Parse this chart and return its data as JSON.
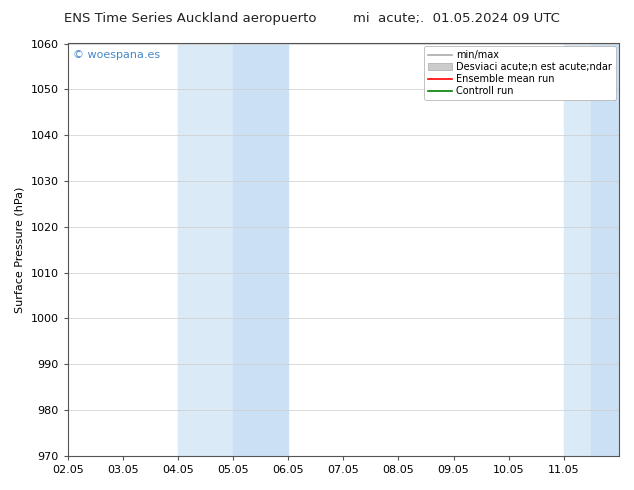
{
  "title_left": "ENS Time Series Auckland aeropuerto",
  "title_right": "mi  acute;.  01.05.2024 09 UTC",
  "ylabel": "Surface Pressure (hPa)",
  "ylim": [
    970,
    1060
  ],
  "yticks": [
    970,
    980,
    990,
    1000,
    1010,
    1020,
    1030,
    1040,
    1050,
    1060
  ],
  "xlim": [
    0,
    10
  ],
  "xtick_labels": [
    "02.05",
    "03.05",
    "04.05",
    "05.05",
    "06.05",
    "07.05",
    "08.05",
    "09.05",
    "10.05",
    "11.05"
  ],
  "xtick_positions": [
    0,
    1,
    2,
    3,
    4,
    5,
    6,
    7,
    8,
    9
  ],
  "shaded_regions": [
    {
      "xmin": 2.0,
      "xmax": 3.0,
      "color": "#daeaf7"
    },
    {
      "xmin": 3.0,
      "xmax": 4.0,
      "color": "#cce0f5"
    },
    {
      "xmin": 9.0,
      "xmax": 9.5,
      "color": "#daeaf7"
    },
    {
      "xmin": 9.5,
      "xmax": 10.0,
      "color": "#cce0f5"
    }
  ],
  "watermark_text": "© woespana.es",
  "watermark_color": "#4488cc",
  "legend_entries": [
    {
      "label": "min/max",
      "color": "#aaaaaa",
      "type": "line"
    },
    {
      "label": "Desviaci acute;n est acute;ndar",
      "color": "#cccccc",
      "type": "fill"
    },
    {
      "label": "Ensemble mean run",
      "color": "red",
      "type": "line"
    },
    {
      "label": "Controll run",
      "color": "green",
      "type": "line"
    }
  ],
  "background_color": "#ffffff",
  "plot_bg_color": "#ffffff",
  "grid_color": "#cccccc",
  "font_size": 8,
  "title_font_size": 9.5
}
